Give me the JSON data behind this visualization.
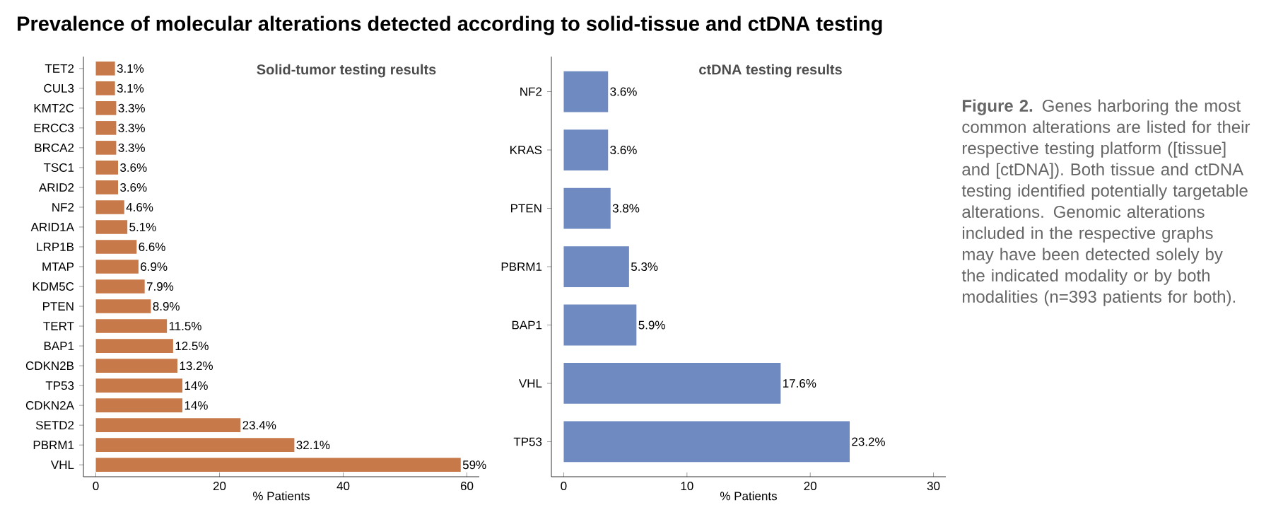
{
  "chart_data": [
    {
      "type": "bar",
      "orientation": "horizontal",
      "title": "Solid-tumor testing results",
      "xlabel": "% Patients",
      "color": "#c8794a",
      "categories": [
        "TET2",
        "CUL3",
        "KMT2C",
        "ERCC3",
        "BRCA2",
        "TSC1",
        "ARID2",
        "NF2",
        "ARID1A",
        "LRP1B",
        "MTAP",
        "KDM5C",
        "PTEN",
        "TERT",
        "BAP1",
        "CDKN2B",
        "TP53",
        "CDKN2A",
        "SETD2",
        "PBRM1",
        "VHL"
      ],
      "values": [
        3.1,
        3.1,
        3.3,
        3.3,
        3.3,
        3.6,
        3.6,
        4.6,
        5.1,
        6.6,
        6.9,
        7.9,
        8.9,
        11.5,
        12.5,
        13.2,
        14,
        14,
        23.4,
        32.1,
        59
      ],
      "value_labels": [
        "3.1%",
        "3.1%",
        "3.3%",
        "3.3%",
        "3.3%",
        "3.6%",
        "3.6%",
        "4.6%",
        "5.1%",
        "6.6%",
        "6.9%",
        "7.9%",
        "8.9%",
        "11.5%",
        "12.5%",
        "13.2%",
        "14%",
        "14%",
        "23.4%",
        "32.1%",
        "59%"
      ],
      "xlim": [
        -2,
        62
      ],
      "xticks": [
        0,
        20,
        40,
        60
      ],
      "annotations": [
        "Prevalence of molecular alterations detected according to solid-tissue and ctDNA testing"
      ]
    },
    {
      "type": "bar",
      "orientation": "horizontal",
      "title": "ctDNA testing results",
      "xlabel": "% Patients",
      "color": "#6e8ac0",
      "categories": [
        "NF2",
        "KRAS",
        "PTEN",
        "PBRM1",
        "BAP1",
        "VHL",
        "TP53"
      ],
      "values": [
        3.6,
        3.6,
        3.8,
        5.3,
        5.9,
        17.6,
        23.2
      ],
      "value_labels": [
        "3.6%",
        "3.6%",
        "3.8%",
        "5.3%",
        "5.9%",
        "17.6%",
        "23.2%"
      ],
      "xlim": [
        -1,
        31
      ],
      "xticks": [
        0,
        10,
        20,
        30
      ],
      "annotations": [
        "**Figure 2.** Genes harboring the most common alterations are listed for their respective testing platform ([tissue] and [ctDNA]). Both tissue and ctDNA testing identified potentially targetable alterations. Genomic alterations included in the respective graphs may have been detected solely by the indicated modality or by both modalities (n=393 patients for both)."
      ]
    }
  ]
}
